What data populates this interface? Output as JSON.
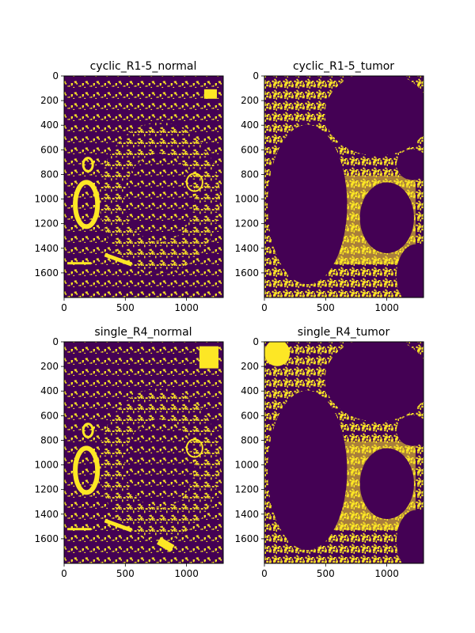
{
  "colors": {
    "background_class": "#440154",
    "foreground_class": "#fde725",
    "axis": "#000000"
  },
  "chart_data": [
    {
      "type": "heatmap",
      "title": "cyclic_R1-5_normal",
      "values_shown": "binary mask (0 = purple, 1 = yellow)",
      "xlim": [
        0,
        1300
      ],
      "ylim": [
        1800,
        0
      ],
      "xticks": [
        0,
        500,
        1000
      ],
      "yticks": [
        0,
        200,
        400,
        600,
        800,
        1000,
        1200,
        1400,
        1600
      ],
      "tissue": "normal"
    },
    {
      "type": "heatmap",
      "title": "cyclic_R1-5_tumor",
      "values_shown": "binary mask (0 = purple, 1 = yellow)",
      "xlim": [
        0,
        1300
      ],
      "ylim": [
        1800,
        0
      ],
      "xticks": [
        0,
        500,
        1000
      ],
      "yticks": [
        0,
        200,
        400,
        600,
        800,
        1000,
        1200,
        1400,
        1600
      ],
      "tissue": "tumor"
    },
    {
      "type": "heatmap",
      "title": "single_R4_normal",
      "values_shown": "binary mask (0 = purple, 1 = yellow)",
      "xlim": [
        0,
        1300
      ],
      "ylim": [
        1800,
        0
      ],
      "xticks": [
        0,
        500,
        1000
      ],
      "yticks": [
        0,
        200,
        400,
        600,
        800,
        1000,
        1200,
        1400,
        1600
      ],
      "tissue": "normal"
    },
    {
      "type": "heatmap",
      "title": "single_R4_tumor",
      "values_shown": "binary mask (0 = purple, 1 = yellow)",
      "xlim": [
        0,
        1300
      ],
      "ylim": [
        1800,
        0
      ],
      "xticks": [
        0,
        500,
        1000
      ],
      "yticks": [
        0,
        200,
        400,
        600,
        800,
        1000,
        1200,
        1400,
        1600
      ],
      "tissue": "tumor"
    }
  ]
}
